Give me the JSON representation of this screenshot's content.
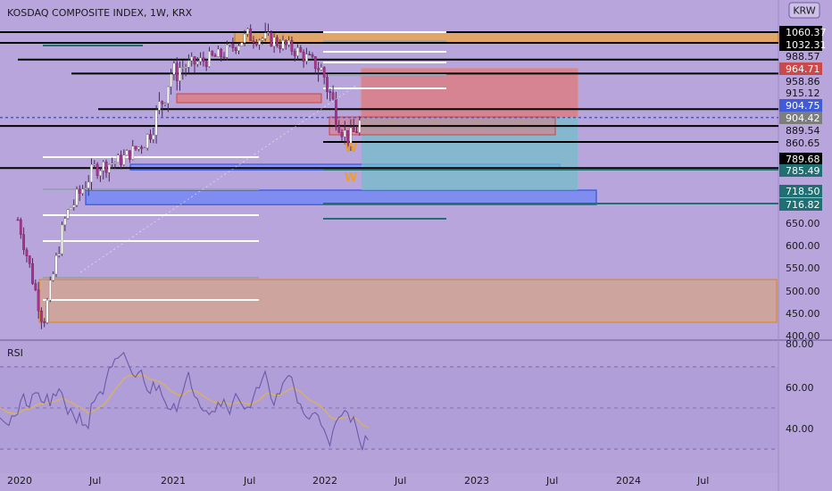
{
  "header": {
    "title": "KOSDAQ COMPOSITE INDEX, 1W, KRX",
    "currency": "KRW"
  },
  "rsi_panel": {
    "label": "RSI",
    "ticks": [
      "80.00",
      "60.00",
      "40.00"
    ]
  },
  "colors": {
    "background": "#b8a5dc",
    "up_candle": "#ffffff",
    "down_candle": "#a8338a",
    "orange_zone": "#e8a452",
    "red_zone": "#e07a7a",
    "blue_zone": "#6b86f5",
    "teal_zone": "#6fc1c9",
    "rsi_line": "#6b5aa8",
    "rsi_ma": "#d9b35a",
    "tag_dark": "#000000",
    "tag_red": "#c94a4a",
    "tag_grey": "#7d7d7d",
    "tag_blue": "#3f5bd8",
    "tag_teal": "#1f6f73"
  },
  "chart_data": {
    "type": "line",
    "title": "KOSDAQ COMPOSITE INDEX, 1W, KRX",
    "x": [
      "2020-01",
      "2020-03",
      "2020-05",
      "2020-07",
      "2020-09",
      "2020-11",
      "2021-01",
      "2021-03",
      "2021-05",
      "2021-07",
      "2021-09",
      "2021-11",
      "2022-01",
      "2022-03",
      "2022-04"
    ],
    "series": [
      {
        "values": [
          660,
          430,
          700,
          790,
          810,
          860,
          960,
          980,
          1000,
          1050,
          1040,
          1010,
          960,
          860,
          900
        ]
      }
    ],
    "x_ticks": [
      "2020",
      "Jul",
      "2021",
      "Jul",
      "2022",
      "Jul",
      "2023",
      "Jul",
      "2024",
      "Jul"
    ],
    "y_ticks": [
      "650.00",
      "600.00",
      "550.00",
      "500.00",
      "450.00",
      "400.00"
    ],
    "ylim": [
      400,
      1090
    ],
    "price_tags": [
      {
        "label": "1060.37",
        "style": "dark"
      },
      {
        "label": "1032.31",
        "style": "dark"
      },
      {
        "label": "988.57",
        "style": "light"
      },
      {
        "label": "964.71",
        "style": "red"
      },
      {
        "label": "958.86",
        "style": "light"
      },
      {
        "label": "915.12",
        "style": "light"
      },
      {
        "label": "904.75",
        "style": "blue"
      },
      {
        "label": "904.42",
        "style": "grey"
      },
      {
        "label": "889.54",
        "style": "light"
      },
      {
        "label": "860.65",
        "style": "light"
      },
      {
        "label": "789.68",
        "style": "dark"
      },
      {
        "label": "785.49",
        "style": "teal"
      },
      {
        "label": "718.50",
        "style": "teal"
      },
      {
        "label": "716.82",
        "style": "teal"
      }
    ],
    "zones": [
      {
        "name": "orange-top",
        "from": 1032,
        "to": 1060
      },
      {
        "name": "orange-bottom",
        "from": 430,
        "to": 525
      },
      {
        "name": "red-top",
        "from": 905,
        "to": 965
      },
      {
        "name": "blue-mid",
        "from": 785,
        "to": 800
      },
      {
        "name": "blue-lower",
        "from": 716,
        "to": 745
      },
      {
        "name": "teal-target",
        "from": 745,
        "to": 905
      }
    ]
  }
}
